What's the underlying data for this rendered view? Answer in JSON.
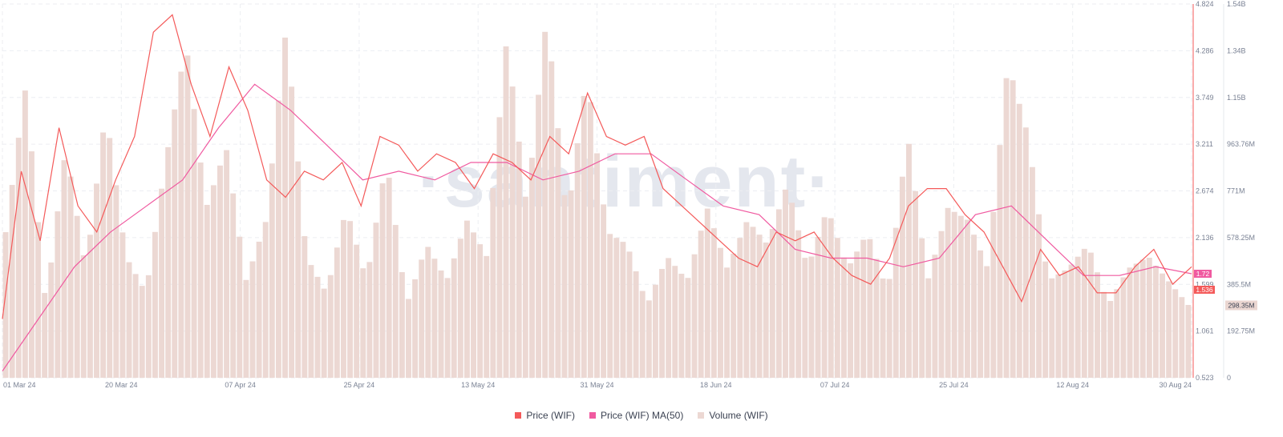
{
  "watermark": "·santiment·",
  "legend": [
    {
      "label": "Price (WIF)",
      "color": "#f45a5a"
    },
    {
      "label": "Price (WIF) MA(50)",
      "color": "#f05aa0"
    },
    {
      "label": "Volume (WIF)",
      "color": "#ecd8d3"
    }
  ],
  "chart_data": {
    "type": "line",
    "title": "",
    "x_ticks": [
      "01 Mar 24",
      "20 Mar 24",
      "07 Apr 24",
      "25 Apr 24",
      "13 May 24",
      "31 May 24",
      "18 Jun 24",
      "07 Jul 24",
      "25 Jul 24",
      "12 Aug 24",
      "30 Aug 24"
    ],
    "price_axis": {
      "ticks": [
        "0.523",
        "1.061",
        "1.599",
        "2.136",
        "2.674",
        "3.211",
        "3.749",
        "4.286",
        "4.824"
      ],
      "range": [
        0.523,
        4.824
      ]
    },
    "volume_axis": {
      "ticks": [
        "0",
        "192.75M",
        "385.5M",
        "578.25M",
        "771M",
        "963.76M",
        "1.15B",
        "1.34B",
        "1.54B"
      ],
      "range": [
        0,
        1540000000
      ]
    },
    "price_badges": [
      "1.72",
      "1.536"
    ],
    "volume_badge": "298.35M",
    "series": [
      {
        "name": "Price (WIF)",
        "color": "#f45a5a",
        "axis": "price",
        "values": [
          1.2,
          2.9,
          2.1,
          3.4,
          2.5,
          2.2,
          2.8,
          3.3,
          4.5,
          4.7,
          3.9,
          3.3,
          4.1,
          3.6,
          2.8,
          2.6,
          2.9,
          2.8,
          3.0,
          2.5,
          3.3,
          3.2,
          2.9,
          3.1,
          3.0,
          2.7,
          3.1,
          3.0,
          2.8,
          3.3,
          3.1,
          3.8,
          3.3,
          3.2,
          3.3,
          2.7,
          2.5,
          2.3,
          2.1,
          1.9,
          1.8,
          2.2,
          2.1,
          2.2,
          1.9,
          1.7,
          1.6,
          1.9,
          2.5,
          2.7,
          2.7,
          2.4,
          2.2,
          1.8,
          1.4,
          2.0,
          1.7,
          1.8,
          1.5,
          1.5,
          1.8,
          2.0,
          1.6,
          1.8
        ]
      },
      {
        "name": "Price (WIF) MA(50)",
        "color": "#f05aa0",
        "axis": "price",
        "values": [
          0.6,
          1.2,
          1.8,
          2.2,
          2.5,
          2.8,
          3.4,
          3.9,
          3.6,
          3.2,
          2.8,
          2.9,
          2.8,
          3.0,
          3.0,
          2.8,
          2.9,
          3.1,
          3.1,
          2.8,
          2.5,
          2.4,
          2.0,
          1.9,
          1.9,
          1.8,
          1.9,
          2.4,
          2.5,
          2.1,
          1.7,
          1.7,
          1.8,
          1.72
        ]
      },
      {
        "name": "Volume (WIF)",
        "color": "#ecd8d3",
        "axis": "volume",
        "values_millions": [
          600,
          1200,
          300,
          950,
          450,
          1100,
          500,
          350,
          900,
          1380,
          700,
          950,
          400,
          650,
          1450,
          500,
          350,
          700,
          400,
          900,
          300,
          550,
          400,
          650,
          500,
          1400,
          700,
          1500,
          650,
          1250,
          600,
          550,
          300,
          500,
          400,
          700,
          450,
          650,
          550,
          800,
          450,
          700,
          450,
          600,
          350,
          1000,
          400,
          700,
          650,
          450,
          1300,
          1000,
          400,
          450,
          550,
          300,
          450,
          500,
          400,
          300
        ]
      }
    ]
  }
}
